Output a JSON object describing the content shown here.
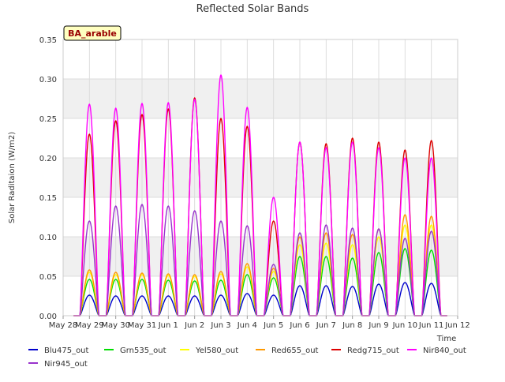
{
  "chart_data": {
    "type": "line",
    "title": "Reflected Solar Bands",
    "ylabel": "Solar Raditaion (W/m2)",
    "xlabel": "Time",
    "annotation": "BA_arable",
    "ylim": [
      0,
      0.35
    ],
    "yticks": [
      "0.00",
      "0.05",
      "0.10",
      "0.15",
      "0.20",
      "0.25",
      "0.30",
      "0.35"
    ],
    "x_start_label": "May 28",
    "xticks": [
      "May 28",
      "May 29",
      "May 30",
      "May 31",
      "Jun 1",
      "Jun 2",
      "Jun 3",
      "Jun 4",
      "Jun 5",
      "Jun 6",
      "Jun 7",
      "Jun 8",
      "Jun 9",
      "Jun 10",
      "Jun 11",
      "Jun 12"
    ],
    "grid": true,
    "legend_position": "bottom",
    "days": [
      "May 29",
      "May 30",
      "May 31",
      "Jun 1",
      "Jun 2",
      "Jun 3",
      "Jun 4",
      "Jun 5",
      "Jun 6",
      "Jun 7",
      "Jun 8",
      "Jun 9",
      "Jun 10",
      "Jun 11"
    ],
    "series": [
      {
        "name": "Blu475_out",
        "color": "#0000cc",
        "daily_peak": [
          0.026,
          0.025,
          0.025,
          0.025,
          0.025,
          0.026,
          0.028,
          0.026,
          0.038,
          0.038,
          0.037,
          0.04,
          0.042,
          0.041
        ]
      },
      {
        "name": "Grn535_out",
        "color": "#00dd00",
        "daily_peak": [
          0.046,
          0.046,
          0.046,
          0.045,
          0.044,
          0.045,
          0.052,
          0.048,
          0.075,
          0.075,
          0.073,
          0.08,
          0.085,
          0.083
        ]
      },
      {
        "name": "Yel580_out",
        "color": "#ffff00",
        "daily_peak": [
          0.055,
          0.052,
          0.052,
          0.051,
          0.05,
          0.053,
          0.062,
          0.056,
          0.09,
          0.092,
          0.09,
          0.1,
          0.115,
          0.115
        ]
      },
      {
        "name": "Red655_out",
        "color": "#ff9900",
        "daily_peak": [
          0.058,
          0.055,
          0.054,
          0.053,
          0.052,
          0.056,
          0.066,
          0.06,
          0.1,
          0.105,
          0.103,
          0.11,
          0.128,
          0.126
        ]
      },
      {
        "name": "Redg715_out",
        "color": "#dd0000",
        "daily_peak": [
          0.23,
          0.247,
          0.255,
          0.262,
          0.276,
          0.25,
          0.24,
          0.12,
          0.22,
          0.218,
          0.225,
          0.22,
          0.21,
          0.222
        ]
      },
      {
        "name": "Nir840_out",
        "color": "#ff00ff",
        "daily_peak": [
          0.268,
          0.263,
          0.269,
          0.27,
          0.274,
          0.305,
          0.264,
          0.15,
          0.22,
          0.213,
          0.22,
          0.213,
          0.2,
          0.2
        ]
      },
      {
        "name": "Nir945_out",
        "color": "#9933cc",
        "daily_peak": [
          0.12,
          0.139,
          0.141,
          0.139,
          0.133,
          0.12,
          0.114,
          0.065,
          0.105,
          0.115,
          0.111,
          0.11,
          0.098,
          0.107
        ]
      }
    ]
  }
}
